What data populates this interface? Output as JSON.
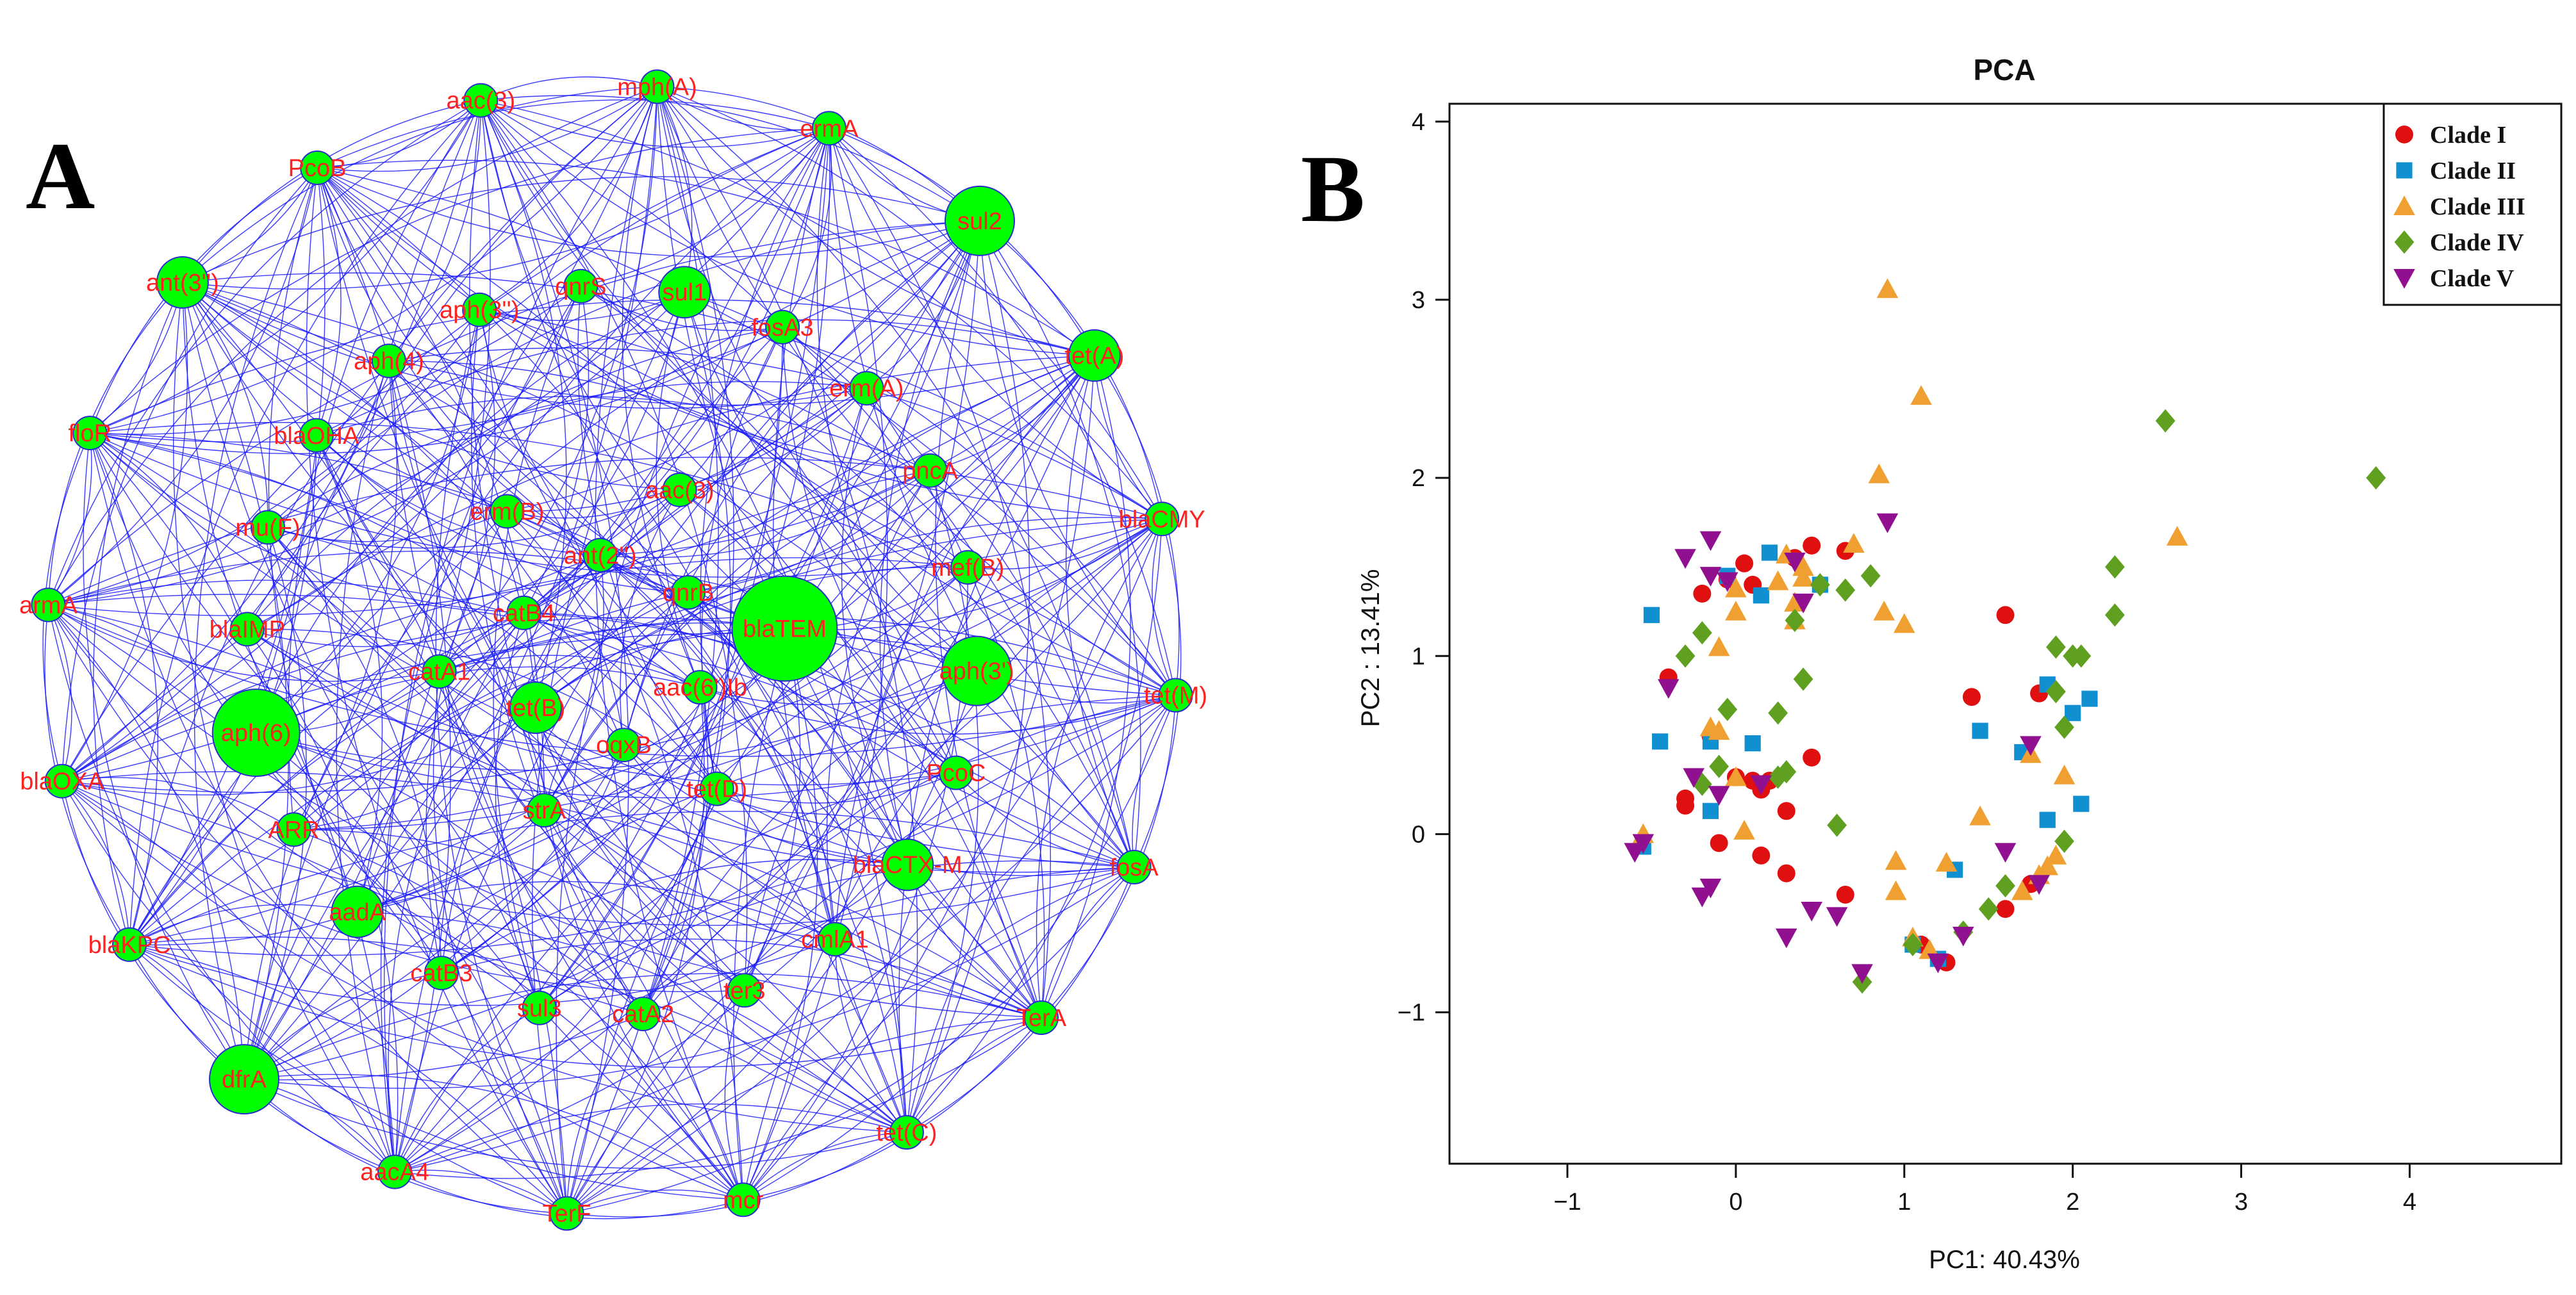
{
  "panel_labels": {
    "a": "A",
    "b": "B"
  },
  "colors": {
    "edge": "#1a1aff",
    "node": "#00ff00",
    "node_stroke": "#2a2ad0",
    "label": "#ff2020"
  },
  "chart_data": [
    {
      "type": "network",
      "panel": "A",
      "layout": "circle",
      "nodes": [
        {
          "label": "mph(A)",
          "size": 1
        },
        {
          "label": "ermA",
          "size": 1
        },
        {
          "label": "sul2",
          "size": 3
        },
        {
          "label": "tet(A)",
          "size": 2
        },
        {
          "label": "blaCMY",
          "size": 1
        },
        {
          "label": "tet(M)",
          "size": 1
        },
        {
          "label": "fosA",
          "size": 1
        },
        {
          "label": "TerA",
          "size": 1
        },
        {
          "label": "tet(C)",
          "size": 1
        },
        {
          "label": "mcr",
          "size": 1
        },
        {
          "label": "TerF",
          "size": 1
        },
        {
          "label": "aacA4",
          "size": 1
        },
        {
          "label": "dfrA",
          "size": 3
        },
        {
          "label": "blaKPC",
          "size": 1
        },
        {
          "label": "blaOXA",
          "size": 1
        },
        {
          "label": "armA",
          "size": 1
        },
        {
          "label": "floR",
          "size": 1
        },
        {
          "label": "ant(3'')",
          "size": 2
        },
        {
          "label": "PcoB",
          "size": 1
        },
        {
          "label": "aac(3)",
          "size": 1
        },
        {
          "label": "sul1",
          "size": 2
        },
        {
          "label": "fosA3",
          "size": 1
        },
        {
          "label": "erm(A)",
          "size": 1
        },
        {
          "label": "pncA",
          "size": 1
        },
        {
          "label": "mef(B)",
          "size": 1
        },
        {
          "label": "aph(3')",
          "size": 3
        },
        {
          "label": "PcoC",
          "size": 1
        },
        {
          "label": "blaCTX-M",
          "size": 2
        },
        {
          "label": "cmlA1",
          "size": 1
        },
        {
          "label": "ter3",
          "size": 1
        },
        {
          "label": "catA2",
          "size": 1
        },
        {
          "label": "sul3",
          "size": 1
        },
        {
          "label": "catB3",
          "size": 1
        },
        {
          "label": "aadA",
          "size": 2
        },
        {
          "label": "ARR",
          "size": 1
        },
        {
          "label": "aph(6)",
          "size": 4
        },
        {
          "label": "blaIMP",
          "size": 1
        },
        {
          "label": "mu(F)",
          "size": 1
        },
        {
          "label": "blaOHA",
          "size": 1
        },
        {
          "label": "aph(4)",
          "size": 1
        },
        {
          "label": "aph(3'')",
          "size": 1
        },
        {
          "label": "qnrS",
          "size": 1
        },
        {
          "label": "aac(3)",
          "size": 1
        },
        {
          "label": "qnrB",
          "size": 1
        },
        {
          "label": "blaTEM",
          "size": 5
        },
        {
          "label": "aac(6')Ib",
          "size": 1
        },
        {
          "label": "tet(D)",
          "size": 1
        },
        {
          "label": "oqxB",
          "size": 1
        },
        {
          "label": "strA",
          "size": 1
        },
        {
          "label": "tet(B)",
          "size": 2
        },
        {
          "label": "catA1",
          "size": 1
        },
        {
          "label": "catB4",
          "size": 1
        },
        {
          "label": "erm(B)",
          "size": 1
        },
        {
          "label": "ant(2'')",
          "size": 1
        }
      ]
    },
    {
      "type": "scatter",
      "panel": "B",
      "title": "PCA",
      "xlabel": "PC1: 40.43%",
      "ylabel": "PC2 : 13.41%",
      "xlim": [
        -1.7,
        4.9
      ],
      "ylim": [
        -1.85,
        4.1
      ],
      "xticks": [
        -1,
        0,
        1,
        2,
        3,
        4
      ],
      "yticks": [
        -1,
        0,
        1,
        2,
        3,
        4
      ],
      "legend_position": "top-right",
      "series": [
        {
          "name": "Clade I",
          "marker": "circle",
          "color": "#e01010",
          "points": [
            [
              0.45,
              1.62
            ],
            [
              0.35,
              1.55
            ],
            [
              0.65,
              1.59
            ],
            [
              0.05,
              1.52
            ],
            [
              -0.05,
              1.43
            ],
            [
              -0.2,
              1.35
            ],
            [
              0.1,
              1.4
            ],
            [
              -0.4,
              0.88
            ],
            [
              1.6,
              1.23
            ],
            [
              1.4,
              0.77
            ],
            [
              1.8,
              0.79
            ],
            [
              -0.15,
              0.55
            ],
            [
              0.45,
              0.43
            ],
            [
              0.2,
              0.3
            ],
            [
              0.15,
              0.25
            ],
            [
              0.1,
              0.3
            ],
            [
              -0.3,
              0.2
            ],
            [
              -0.3,
              0.16
            ],
            [
              0.3,
              0.13
            ],
            [
              0.0,
              0.32
            ],
            [
              -0.1,
              -0.05
            ],
            [
              0.15,
              -0.12
            ],
            [
              0.3,
              -0.22
            ],
            [
              0.65,
              -0.34
            ],
            [
              1.1,
              -0.62
            ],
            [
              1.25,
              -0.72
            ],
            [
              1.6,
              -0.42
            ],
            [
              1.75,
              -0.28
            ]
          ]
        },
        {
          "name": "Clade II",
          "marker": "square",
          "color": "#1090d0",
          "points": [
            [
              0.2,
              1.58
            ],
            [
              0.15,
              1.34
            ],
            [
              0.5,
              1.4
            ],
            [
              -0.5,
              1.23
            ],
            [
              -0.05,
              1.45
            ],
            [
              1.85,
              0.84
            ],
            [
              2.1,
              0.76
            ],
            [
              2.0,
              0.68
            ],
            [
              1.45,
              0.58
            ],
            [
              1.7,
              0.46
            ],
            [
              -0.15,
              0.52
            ],
            [
              0.1,
              0.51
            ],
            [
              -0.45,
              0.52
            ],
            [
              -0.15,
              0.13
            ],
            [
              2.05,
              0.17
            ],
            [
              1.85,
              0.08
            ],
            [
              1.3,
              -0.2
            ],
            [
              1.05,
              -0.62
            ],
            [
              1.2,
              -0.7
            ],
            [
              -0.55,
              -0.07
            ]
          ]
        },
        {
          "name": "Clade III",
          "marker": "triangle",
          "color": "#f0a030",
          "points": [
            [
              0.9,
              3.06
            ],
            [
              1.1,
              2.46
            ],
            [
              0.85,
              2.02
            ],
            [
              2.62,
              1.67
            ],
            [
              0.7,
              1.63
            ],
            [
              0.3,
              1.57
            ],
            [
              0.4,
              1.5
            ],
            [
              0.25,
              1.42
            ],
            [
              0.4,
              1.44
            ],
            [
              0.0,
              1.38
            ],
            [
              0.35,
              1.3
            ],
            [
              -0.1,
              1.05
            ],
            [
              0.88,
              1.25
            ],
            [
              1.0,
              1.18
            ],
            [
              0.35,
              1.2
            ],
            [
              0.0,
              1.25
            ],
            [
              -0.15,
              0.6
            ],
            [
              -0.1,
              0.58
            ],
            [
              0.0,
              0.32
            ],
            [
              1.95,
              0.33
            ],
            [
              1.45,
              0.1
            ],
            [
              0.05,
              0.02
            ],
            [
              -0.55,
              0.0
            ],
            [
              1.9,
              -0.12
            ],
            [
              1.85,
              -0.18
            ],
            [
              1.8,
              -0.23
            ],
            [
              1.7,
              -0.32
            ],
            [
              0.95,
              -0.32
            ],
            [
              1.25,
              -0.16
            ],
            [
              0.95,
              -0.15
            ],
            [
              1.05,
              -0.58
            ],
            [
              1.15,
              -0.65
            ],
            [
              1.75,
              0.45
            ]
          ]
        },
        {
          "name": "Clade IV",
          "marker": "diamond",
          "color": "#60a020",
          "points": [
            [
              2.55,
              2.32
            ],
            [
              3.8,
              2.0
            ],
            [
              2.25,
              1.5
            ],
            [
              2.25,
              1.23
            ],
            [
              1.9,
              1.05
            ],
            [
              2.0,
              1.0
            ],
            [
              2.05,
              1.0
            ],
            [
              1.9,
              0.8
            ],
            [
              1.95,
              0.6
            ],
            [
              0.8,
              1.45
            ],
            [
              0.65,
              1.37
            ],
            [
              0.5,
              1.4
            ],
            [
              0.35,
              1.2
            ],
            [
              -0.2,
              1.13
            ],
            [
              -0.3,
              1.0
            ],
            [
              0.4,
              0.87
            ],
            [
              0.25,
              0.68
            ],
            [
              -0.05,
              0.7
            ],
            [
              -0.1,
              0.38
            ],
            [
              0.3,
              0.35
            ],
            [
              0.25,
              0.32
            ],
            [
              -0.2,
              0.28
            ],
            [
              0.6,
              0.05
            ],
            [
              1.95,
              -0.04
            ],
            [
              1.6,
              -0.29
            ],
            [
              1.5,
              -0.42
            ],
            [
              1.35,
              -0.55
            ],
            [
              1.05,
              -0.62
            ],
            [
              0.75,
              -0.83
            ]
          ]
        },
        {
          "name": "Clade V",
          "marker": "triangle-down",
          "color": "#901090",
          "points": [
            [
              0.9,
              1.75
            ],
            [
              -0.15,
              1.65
            ],
            [
              -0.3,
              1.55
            ],
            [
              -0.05,
              1.42
            ],
            [
              -0.15,
              1.45
            ],
            [
              0.4,
              1.3
            ],
            [
              0.35,
              1.53
            ],
            [
              -0.4,
              0.82
            ],
            [
              -0.25,
              0.32
            ],
            [
              -0.1,
              0.22
            ],
            [
              -0.55,
              -0.05
            ],
            [
              -0.6,
              -0.1
            ],
            [
              -0.15,
              -0.3
            ],
            [
              -0.2,
              -0.35
            ],
            [
              0.3,
              -0.58
            ],
            [
              0.45,
              -0.43
            ],
            [
              0.6,
              -0.46
            ],
            [
              0.75,
              -0.78
            ],
            [
              1.2,
              -0.72
            ],
            [
              1.35,
              -0.57
            ],
            [
              1.8,
              -0.28
            ],
            [
              1.6,
              -0.1
            ],
            [
              1.75,
              0.5
            ],
            [
              0.15,
              0.28
            ]
          ]
        }
      ]
    }
  ]
}
